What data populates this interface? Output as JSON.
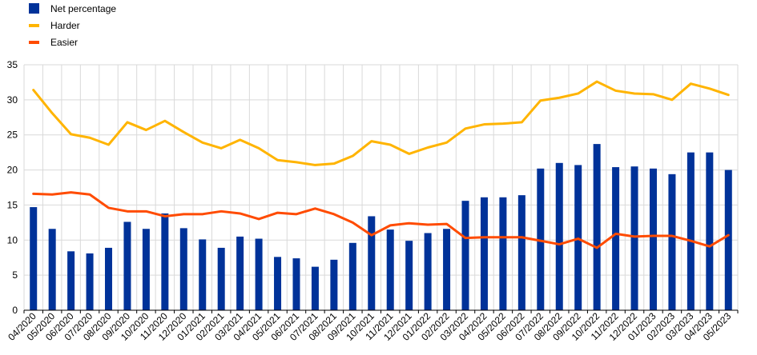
{
  "chart_data": {
    "type": "bar",
    "categories": [
      "04/2020",
      "05/2020",
      "06/2020",
      "07/2020",
      "08/2020",
      "09/2020",
      "10/2020",
      "11/2020",
      "12/2020",
      "01/2021",
      "02/2021",
      "03/2021",
      "04/2021",
      "05/2021",
      "06/2021",
      "07/2021",
      "08/2021",
      "09/2021",
      "10/2021",
      "11/2021",
      "12/2021",
      "01/2022",
      "02/2022",
      "03/2022",
      "04/2022",
      "05/2022",
      "06/2022",
      "07/2022",
      "08/2022",
      "09/2022",
      "10/2022",
      "11/2022",
      "12/2022",
      "01/2023",
      "02/2023",
      "03/2023",
      "04/2023",
      "05/2023"
    ],
    "series": [
      {
        "name": "Net percentage",
        "type": "bar",
        "color": "#003299",
        "values": [
          14.7,
          11.6,
          8.4,
          8.1,
          8.9,
          12.6,
          11.6,
          13.8,
          11.7,
          10.1,
          8.9,
          10.5,
          10.2,
          7.6,
          7.4,
          6.2,
          7.2,
          9.6,
          13.4,
          11.5,
          9.9,
          11.0,
          11.6,
          15.6,
          16.1,
          16.1,
          16.4,
          20.2,
          21.0,
          20.7,
          23.7,
          20.4,
          20.5,
          20.2,
          19.4,
          22.5,
          22.5,
          20.0
        ]
      },
      {
        "name": "Harder",
        "type": "line",
        "color": "#ffb400",
        "values": [
          31.4,
          28.1,
          25.1,
          24.6,
          23.6,
          26.8,
          25.7,
          27.0,
          25.4,
          23.9,
          23.1,
          24.3,
          23.1,
          21.4,
          21.1,
          20.7,
          20.9,
          22.0,
          24.1,
          23.6,
          22.3,
          23.2,
          23.9,
          25.9,
          26.5,
          26.6,
          26.8,
          29.9,
          30.3,
          30.9,
          32.6,
          31.3,
          30.9,
          30.8,
          30.0,
          32.3,
          31.6,
          30.7
        ]
      },
      {
        "name": "Easier",
        "type": "line",
        "color": "#ff4b00",
        "values": [
          16.6,
          16.5,
          16.8,
          16.5,
          14.6,
          14.1,
          14.1,
          13.4,
          13.7,
          13.7,
          14.1,
          13.8,
          13.0,
          13.9,
          13.7,
          14.5,
          13.7,
          12.5,
          10.7,
          12.1,
          12.4,
          12.2,
          12.3,
          10.3,
          10.4,
          10.4,
          10.4,
          9.9,
          9.4,
          10.2,
          8.9,
          10.9,
          10.5,
          10.6,
          10.6,
          9.9,
          9.1,
          10.7
        ]
      }
    ],
    "ylim": [
      0,
      35
    ],
    "yticks": [
      0,
      5,
      10,
      15,
      20,
      25,
      30,
      35
    ],
    "grid": true,
    "legend_position": "top-left"
  }
}
